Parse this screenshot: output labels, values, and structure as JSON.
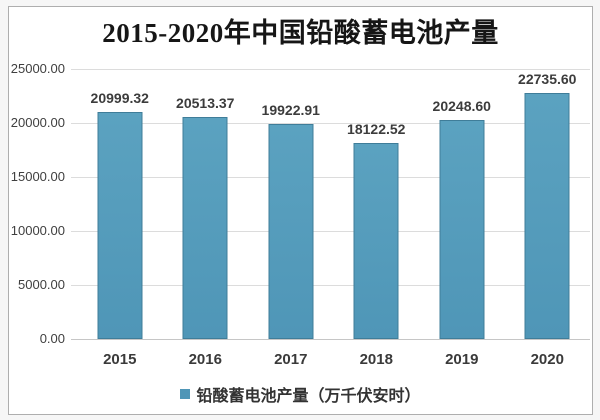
{
  "chart_data": {
    "type": "bar",
    "title": "2015-2020年中国铅酸蓄电池产量",
    "categories": [
      "2015",
      "2016",
      "2017",
      "2018",
      "2019",
      "2020"
    ],
    "values": [
      20999.32,
      20513.37,
      19922.91,
      18122.52,
      20248.6,
      22735.6
    ],
    "value_labels": [
      "20999.32",
      "20513.37",
      "19922.91",
      "18122.52",
      "20248.60",
      "22735.60"
    ],
    "xlabel": "",
    "ylabel": "",
    "ylim": [
      0,
      25000
    ],
    "y_tick_interval": 5000,
    "y_ticks": [
      "25000.00",
      "20000.00",
      "15000.00",
      "10000.00",
      "5000.00",
      "0.00"
    ],
    "grid": true,
    "legend": [
      "铅酸蓄电池产量（万千伏安时）"
    ],
    "legend_position": "bottom",
    "colors": {
      "bar_fill": "#4f96b7",
      "bar_fill_light": "#5ba2c0",
      "bar_border": "#3f7d99",
      "gridline": "#dcdcdc",
      "axis_line": "#c6c6c6",
      "frame_border": "#aeaeae",
      "label_text": "#3c3c3c",
      "title_text": "#161616"
    }
  }
}
